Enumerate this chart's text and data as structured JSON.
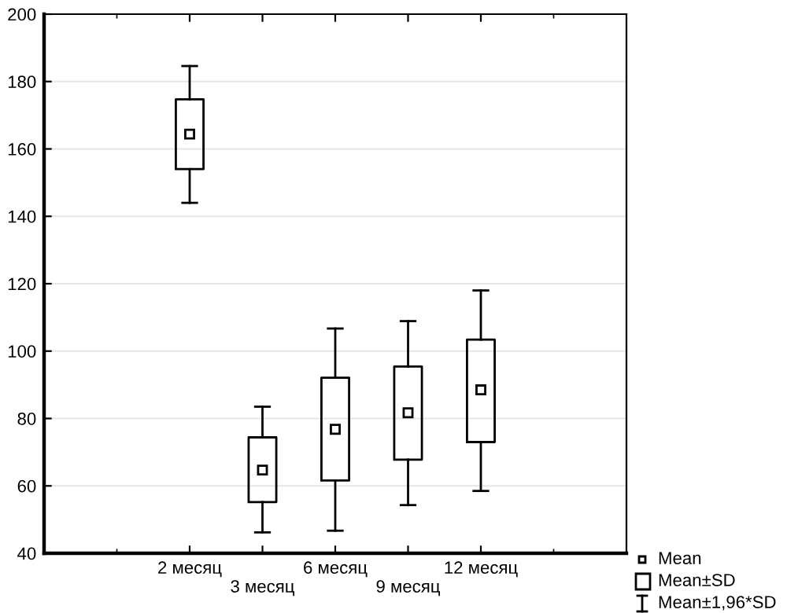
{
  "chart_data": {
    "type": "box",
    "categories": [
      "2 месяц",
      "3 месяц",
      "6 месяц",
      "9 месяц",
      "12 месяц"
    ],
    "boxes": [
      {
        "low": 144,
        "q1": 154,
        "median": 164.4,
        "q3": 174.7,
        "high": 184.6
      },
      {
        "low": 46.2,
        "q1": 55.2,
        "median": 64.7,
        "q3": 74.4,
        "high": 83.5
      },
      {
        "low": 46.7,
        "q1": 61.6,
        "median": 76.8,
        "q3": 92.1,
        "high": 106.7
      },
      {
        "low": 54.3,
        "q1": 67.8,
        "median": 81.7,
        "q3": 95.4,
        "high": 108.9
      },
      {
        "low": 58.5,
        "q1": 73,
        "median": 88.5,
        "q3": 103.4,
        "high": 118
      }
    ],
    "color": "#000000",
    "ylim": [
      40,
      200
    ],
    "yticks": [
      40,
      60,
      80,
      100,
      120,
      140,
      160,
      180,
      200
    ],
    "grid": "y",
    "marker": "square",
    "annotations": [
      "Mean",
      "Mean±SD",
      "Mean±1,96*SD"
    ]
  }
}
